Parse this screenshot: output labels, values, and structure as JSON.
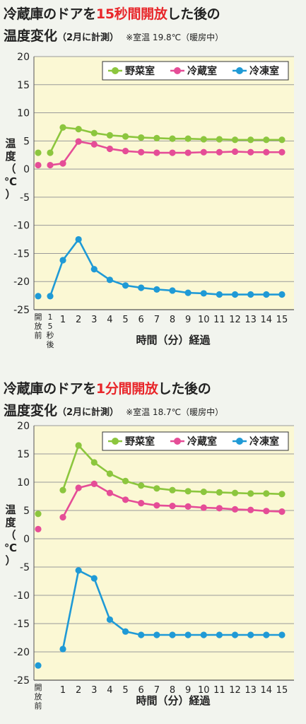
{
  "colors": {
    "vegetable": "#8cc63e",
    "refrigerator": "#e54d97",
    "freezer": "#1f9ad6",
    "title_highlight": "#e8262a",
    "plot_bg": "#fbf8d4",
    "gridline": "#9a9a9a"
  },
  "charts": [
    {
      "title_pre": "冷蔵庫のドアを",
      "title_highlight": "15秒間開放",
      "title_post": "した後の",
      "subtitle_main": "温度変化",
      "subtitle_paren": "（2月に計測）",
      "note": "※室温 19.8℃（暖房中）"
    },
    {
      "title_pre": "冷蔵庫のドアを",
      "title_highlight": "1分間開放",
      "title_post": "した後の",
      "subtitle_main": "温度変化",
      "subtitle_paren": "（2月に計測）",
      "note": "※室温 18.7℃（暖房中）"
    }
  ],
  "chart_data": [
    {
      "type": "line",
      "xlabel": "時間（分）経過",
      "ylabel": "温度（℃）",
      "ylim": [
        -25,
        20
      ],
      "yticks": [
        20,
        15,
        10,
        5,
        0,
        -5,
        -10,
        -15,
        -20,
        -25
      ],
      "grid": true,
      "legend_position": "top-right",
      "x_labels": [
        "開放前",
        "15秒後",
        "1",
        "2",
        "3",
        "4",
        "5",
        "6",
        "7",
        "8",
        "9",
        "10",
        "11",
        "12",
        "13",
        "14",
        "15"
      ],
      "series": [
        {
          "name": "野菜室",
          "color_key": "vegetable",
          "values": [
            2.9,
            2.9,
            7.4,
            7.1,
            6.4,
            6.0,
            5.8,
            5.6,
            5.5,
            5.4,
            5.4,
            5.3,
            5.3,
            5.2,
            5.2,
            5.2,
            5.2
          ]
        },
        {
          "name": "冷蔵室",
          "color_key": "refrigerator",
          "values": [
            0.7,
            0.7,
            1.0,
            4.9,
            4.4,
            3.6,
            3.2,
            3.0,
            2.9,
            2.9,
            2.9,
            3.0,
            3.0,
            3.1,
            3.0,
            3.0,
            3.0
          ]
        },
        {
          "name": "冷凍室",
          "color_key": "freezer",
          "values": [
            -22.6,
            -22.6,
            -16.2,
            -12.5,
            -17.8,
            -19.7,
            -20.7,
            -21.1,
            -21.4,
            -21.6,
            -22.0,
            -22.1,
            -22.3,
            -22.3,
            -22.3,
            -22.3,
            -22.3
          ]
        }
      ]
    },
    {
      "type": "line",
      "xlabel": "時間（分）経過",
      "ylabel": "温度（℃）",
      "ylim": [
        -25,
        20
      ],
      "yticks": [
        20,
        15,
        10,
        5,
        0,
        -5,
        -10,
        -15,
        -20,
        -25
      ],
      "grid": true,
      "legend_position": "top-right",
      "x_labels": [
        "開放前",
        "1",
        "2",
        "3",
        "4",
        "5",
        "6",
        "7",
        "8",
        "9",
        "10",
        "11",
        "12",
        "13",
        "14",
        "15"
      ],
      "series": [
        {
          "name": "野菜室",
          "color_key": "vegetable",
          "values": [
            4.4,
            8.6,
            16.5,
            13.5,
            11.5,
            10.2,
            9.4,
            8.9,
            8.6,
            8.4,
            8.3,
            8.2,
            8.1,
            8.0,
            8.0,
            7.9
          ]
        },
        {
          "name": "冷蔵室",
          "color_key": "refrigerator",
          "values": [
            1.7,
            3.8,
            9.0,
            9.7,
            8.1,
            6.9,
            6.3,
            5.9,
            5.8,
            5.7,
            5.5,
            5.4,
            5.2,
            5.1,
            4.9,
            4.8
          ]
        },
        {
          "name": "冷凍室",
          "color_key": "freezer",
          "values": [
            -22.4,
            -19.5,
            -5.6,
            -7.0,
            -14.3,
            -16.4,
            -17.0,
            -17.0,
            -17.0,
            -17.0,
            -17.0,
            -17.0,
            -17.0,
            -17.0,
            -17.0,
            -17.0
          ]
        }
      ]
    }
  ]
}
